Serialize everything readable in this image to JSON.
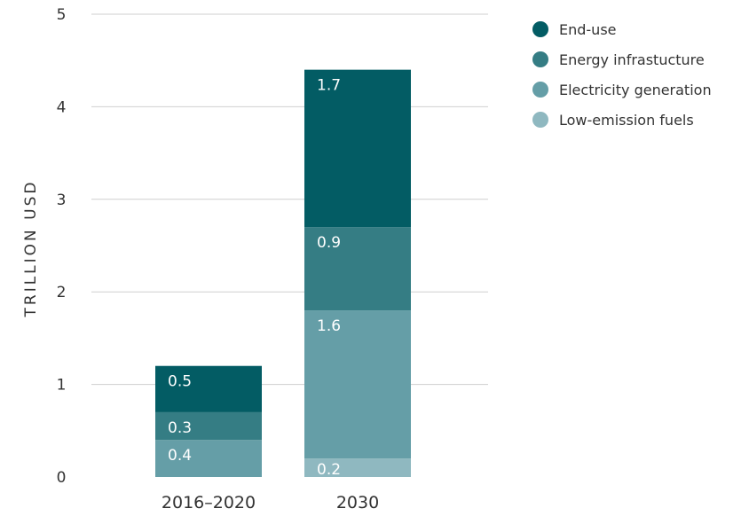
{
  "chart_data": {
    "type": "bar",
    "stacked": true,
    "ylabel": "TRILLION USD",
    "xlabel": "",
    "ylim": [
      0,
      5
    ],
    "yticks": [
      "0",
      "1",
      "2",
      "3",
      "4",
      "5"
    ],
    "grid": true,
    "legend_position": "top-right",
    "categories": [
      "2016–2020",
      "2030"
    ],
    "series": [
      {
        "name": "Low-emission fuels",
        "color": "#8fb8c0",
        "values": [
          0,
          0.2
        ],
        "labels": [
          "",
          "0.2"
        ]
      },
      {
        "name": "Electricity generation",
        "color": "#659ea7",
        "values": [
          0.4,
          1.6
        ],
        "labels": [
          "0.4",
          "1.6"
        ]
      },
      {
        "name": "Energy infrastucture",
        "color": "#357d84",
        "values": [
          0.3,
          0.9
        ],
        "labels": [
          "0.3",
          "0.9"
        ]
      },
      {
        "name": "End-use",
        "color": "#035c64",
        "values": [
          0.5,
          1.7
        ],
        "labels": [
          "0.5",
          "1.7"
        ]
      }
    ],
    "legend_order": [
      "End-use",
      "Energy infrastucture",
      "Electricity generation",
      "Low-emission fuels"
    ]
  }
}
